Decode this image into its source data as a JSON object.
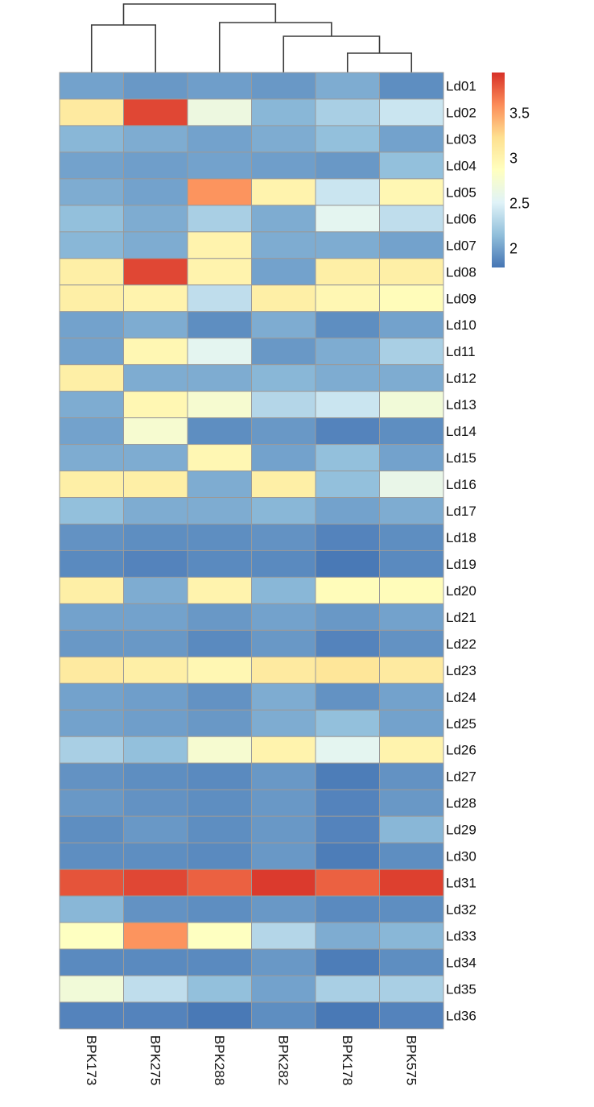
{
  "chart_data": {
    "type": "heatmap",
    "title": "",
    "xlabel": "",
    "ylabel": "",
    "columns": [
      "BPK173",
      "BPK275",
      "BPK288",
      "BPK282",
      "BPK178",
      "BPK575"
    ],
    "rows": [
      "Ld01",
      "Ld02",
      "Ld03",
      "Ld04",
      "Ld05",
      "Ld06",
      "Ld07",
      "Ld08",
      "Ld09",
      "Ld10",
      "Ld11",
      "Ld12",
      "Ld13",
      "Ld14",
      "Ld15",
      "Ld16",
      "Ld17",
      "Ld18",
      "Ld19",
      "Ld20",
      "Ld21",
      "Ld22",
      "Ld23",
      "Ld24",
      "Ld25",
      "Ld26",
      "Ld27",
      "Ld28",
      "Ld29",
      "Ld30",
      "Ld31",
      "Ld32",
      "Ld33",
      "Ld34",
      "Ld35",
      "Ld36"
    ],
    "values": [
      [
        2.0,
        1.95,
        1.98,
        1.95,
        2.05,
        1.9
      ],
      [
        3.1,
        3.85,
        2.65,
        2.1,
        2.25,
        2.4
      ],
      [
        2.1,
        2.05,
        2.0,
        2.05,
        2.15,
        2.0
      ],
      [
        2.0,
        1.98,
        2.0,
        1.98,
        1.95,
        2.15
      ],
      [
        2.05,
        2.0,
        3.55,
        3.0,
        2.4,
        2.95
      ],
      [
        2.15,
        2.05,
        2.25,
        2.05,
        2.55,
        2.35
      ],
      [
        2.1,
        2.05,
        3.0,
        2.05,
        2.05,
        2.0
      ],
      [
        3.05,
        3.85,
        3.0,
        2.0,
        3.05,
        3.05
      ],
      [
        3.05,
        3.0,
        2.35,
        3.05,
        2.95,
        2.9
      ],
      [
        2.0,
        2.05,
        1.9,
        2.05,
        1.9,
        2.0
      ],
      [
        2.0,
        2.95,
        2.55,
        1.95,
        2.05,
        2.25
      ],
      [
        3.05,
        2.05,
        2.05,
        2.1,
        2.05,
        2.05
      ],
      [
        2.05,
        2.95,
        2.75,
        2.3,
        2.4,
        2.7
      ],
      [
        2.0,
        2.75,
        1.9,
        1.95,
        1.85,
        1.9
      ],
      [
        2.05,
        2.05,
        2.95,
        2.0,
        2.15,
        2.0
      ],
      [
        3.05,
        3.05,
        2.05,
        3.05,
        2.15,
        2.6
      ],
      [
        2.15,
        2.05,
        2.05,
        2.1,
        2.0,
        2.05
      ],
      [
        1.92,
        1.9,
        1.9,
        1.92,
        1.85,
        1.9
      ],
      [
        1.88,
        1.85,
        1.88,
        1.88,
        1.8,
        1.88
      ],
      [
        3.05,
        2.05,
        3.0,
        2.1,
        2.9,
        2.9
      ],
      [
        2.0,
        2.0,
        1.95,
        2.0,
        1.95,
        2.0
      ],
      [
        1.95,
        1.95,
        1.88,
        1.95,
        1.85,
        1.92
      ],
      [
        3.1,
        3.05,
        2.95,
        3.1,
        3.15,
        3.1
      ],
      [
        2.0,
        1.98,
        1.92,
        2.05,
        1.92,
        2.0
      ],
      [
        2.0,
        1.98,
        1.95,
        2.05,
        2.15,
        2.0
      ],
      [
        2.25,
        2.15,
        2.75,
        3.0,
        2.55,
        3.0
      ],
      [
        1.92,
        1.9,
        1.88,
        1.95,
        1.82,
        1.92
      ],
      [
        1.95,
        1.92,
        1.9,
        1.95,
        1.85,
        1.95
      ],
      [
        1.9,
        1.95,
        1.9,
        1.95,
        1.85,
        2.1
      ],
      [
        1.9,
        1.9,
        1.88,
        1.95,
        1.82,
        1.9
      ],
      [
        3.8,
        3.85,
        3.75,
        3.9,
        3.75,
        3.88
      ],
      [
        2.1,
        1.92,
        1.9,
        1.95,
        1.88,
        1.9
      ],
      [
        2.85,
        3.55,
        2.85,
        2.3,
        2.05,
        2.1
      ],
      [
        1.88,
        1.88,
        1.88,
        1.95,
        1.82,
        1.9
      ],
      [
        2.7,
        2.35,
        2.15,
        2.0,
        2.25,
        2.25
      ],
      [
        1.85,
        1.85,
        1.8,
        1.9,
        1.8,
        1.85
      ]
    ],
    "color_scale": {
      "min": 1.78,
      "max": 3.94,
      "stops": [
        "#4575B4",
        "#91BFDB",
        "#E0F3F8",
        "#FFFFBF",
        "#FEE090",
        "#FC8D59",
        "#D73027"
      ],
      "legend_ticks": [
        {
          "value": 3.5,
          "label": "3.5"
        },
        {
          "value": 3,
          "label": "3"
        },
        {
          "value": 2.5,
          "label": "2.5"
        },
        {
          "value": 2,
          "label": "2"
        }
      ]
    },
    "column_dendrogram": {
      "merges": [
        {
          "left": "BPK173",
          "right": "BPK275",
          "height_rank": 3
        },
        {
          "left": "BPK178",
          "right": "BPK575",
          "height_rank": 1
        },
        {
          "left": "BPK282",
          "right": "BPK178+BPK575",
          "height_rank": 2
        },
        {
          "left": "BPK288",
          "right": "BPK282+BPK178+BPK575",
          "height_rank": 4
        },
        {
          "left": "BPK173+BPK275",
          "right": "BPK288+BPK282+BPK178+BPK575",
          "height_rank": 5
        }
      ]
    },
    "legend_position": "right",
    "grid": true
  }
}
